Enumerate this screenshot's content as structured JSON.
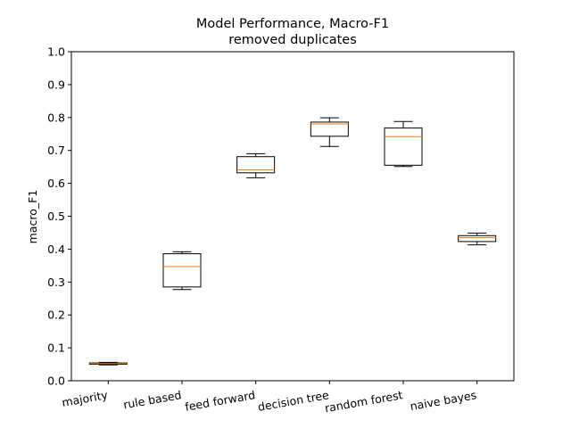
{
  "chart_data": {
    "type": "box",
    "title": "Model Performance, Macro-F1",
    "subtitle": "removed duplicates",
    "xlabel": "",
    "ylabel": "macro_F1",
    "ylim": [
      0.0,
      1.0
    ],
    "yticks": [
      "0.0",
      "0.1",
      "0.2",
      "0.3",
      "0.4",
      "0.5",
      "0.6",
      "0.7",
      "0.8",
      "0.9",
      "1.0"
    ],
    "grid": false,
    "categories": [
      "majority",
      "rule based",
      "feed forward",
      "decision tree",
      "random forest",
      "naive bayes"
    ],
    "boxes": [
      {
        "whisker_low": 0.048,
        "q1": 0.05,
        "median": 0.052,
        "q3": 0.054,
        "whisker_high": 0.056
      },
      {
        "whisker_low": 0.277,
        "q1": 0.285,
        "median": 0.347,
        "q3": 0.386,
        "whisker_high": 0.392
      },
      {
        "whisker_low": 0.617,
        "q1": 0.632,
        "median": 0.641,
        "q3": 0.681,
        "whisker_high": 0.69
      },
      {
        "whisker_low": 0.712,
        "q1": 0.743,
        "median": 0.78,
        "q3": 0.786,
        "whisker_high": 0.799
      },
      {
        "whisker_low": 0.651,
        "q1": 0.655,
        "median": 0.742,
        "q3": 0.768,
        "whisker_high": 0.788
      },
      {
        "whisker_low": 0.413,
        "q1": 0.423,
        "median": 0.435,
        "q3": 0.441,
        "whisker_high": 0.449
      }
    ],
    "colors": {
      "box": "#000000",
      "median": "#ff7f0e",
      "axes": "#000000"
    }
  }
}
